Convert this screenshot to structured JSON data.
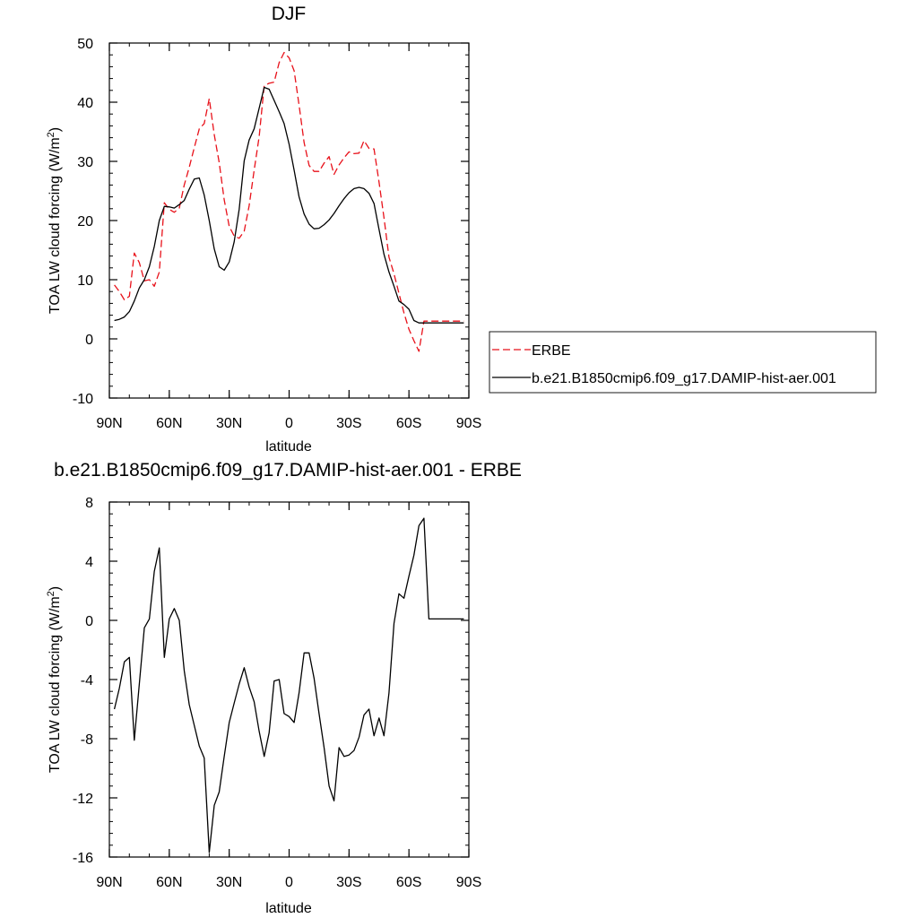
{
  "chart_data": [
    {
      "type": "line",
      "title": "DJF",
      "xlabel": "latitude",
      "ylabel_main": "TOA LW cloud forcing (W/m",
      "ylabel_sup": "2",
      "ylabel_close": ")",
      "xlim": [
        90,
        -90
      ],
      "ylim": [
        -10,
        50
      ],
      "x_ticks": [
        {
          "value": 90,
          "label": "90N"
        },
        {
          "value": 60,
          "label": "60N"
        },
        {
          "value": 30,
          "label": "30N"
        },
        {
          "value": 0,
          "label": "0"
        },
        {
          "value": -30,
          "label": "30S"
        },
        {
          "value": -60,
          "label": "60S"
        },
        {
          "value": -90,
          "label": "90S"
        }
      ],
      "y_ticks": [
        {
          "value": 50,
          "label": "50"
        },
        {
          "value": 40,
          "label": "40"
        },
        {
          "value": 30,
          "label": "30"
        },
        {
          "value": 20,
          "label": "20"
        },
        {
          "value": 10,
          "label": "10"
        },
        {
          "value": 0,
          "label": "0"
        },
        {
          "value": -10,
          "label": "-10"
        }
      ],
      "legend": [
        {
          "label": "ERBE",
          "color": "#e8111a",
          "dash": "dashed"
        },
        {
          "label": "b.e21.B1850cmip6.f09_g17.DAMIP-hist-aer.001",
          "color": "#000000",
          "dash": "solid"
        }
      ],
      "series": [
        {
          "name": "ERBE",
          "color": "#e8111a",
          "dash": "dashed",
          "x": [
            87.5,
            85,
            82.5,
            80,
            77.5,
            75,
            72.5,
            70,
            67.5,
            65,
            62.5,
            60,
            57.5,
            55,
            52.5,
            50,
            47.5,
            45,
            42.5,
            40,
            37.5,
            35,
            32.5,
            30,
            27.5,
            25,
            22.5,
            20,
            17.5,
            15,
            12.5,
            10,
            7.5,
            5,
            2.5,
            0,
            -2.5,
            -5,
            -7.5,
            -10,
            -12.5,
            -15,
            -17.5,
            -20,
            -22.5,
            -25,
            -27.5,
            -30,
            -32.5,
            -35,
            -37.5,
            -40,
            -42.5,
            -45,
            -47.5,
            -50,
            -52.5,
            -55,
            -57.5,
            -60,
            -62.5,
            -65,
            -67.5,
            -70,
            -72.5,
            -75,
            -77.5,
            -80,
            -82.5,
            -85,
            -87.5
          ],
          "y": [
            9.1,
            8.0,
            6.6,
            7.2,
            14.5,
            12.9,
            9.8,
            10.0,
            8.9,
            11.3,
            23.0,
            21.9,
            21.4,
            22.1,
            26.0,
            29.0,
            32.3,
            35.5,
            36.4,
            40.6,
            34.5,
            29.8,
            23.5,
            19.0,
            17.4,
            17.0,
            18.2,
            22.5,
            28.5,
            34.2,
            42.8,
            43.2,
            43.4,
            46.7,
            48.4,
            47.5,
            45.3,
            39.5,
            33.2,
            29.3,
            28.3,
            28.3,
            29.7,
            30.8,
            27.8,
            29.4,
            30.6,
            31.6,
            31.3,
            31.4,
            33.5,
            32.2,
            32.1,
            26.5,
            20.5,
            13.8,
            11.0,
            7.7,
            4.4,
            1.6,
            -0.3,
            -2.1,
            3.0,
            3.0,
            3.0,
            3.0,
            3.0,
            3.0,
            3.0,
            3.0,
            3.0
          ]
        },
        {
          "name": "b.e21.B1850cmip6.f09_g17.DAMIP-hist-aer.001",
          "color": "#000000",
          "dash": "solid",
          "x": [
            87.5,
            85,
            82.5,
            80,
            77.5,
            75,
            72.5,
            70,
            67.5,
            65,
            62.5,
            60,
            57.5,
            55,
            52.5,
            50,
            47.5,
            45,
            42.5,
            40,
            37.5,
            35,
            32.5,
            30,
            27.5,
            25,
            22.5,
            20,
            17.5,
            15,
            12.5,
            10,
            7.5,
            5,
            2.5,
            0,
            -2.5,
            -5,
            -7.5,
            -10,
            -12.5,
            -15,
            -17.5,
            -20,
            -22.5,
            -25,
            -27.5,
            -30,
            -32.5,
            -35,
            -37.5,
            -40,
            -42.5,
            -45,
            -47.5,
            -50,
            -52.5,
            -55,
            -57.5,
            -60,
            -62.5,
            -65,
            -67.5,
            -70,
            -72.5,
            -75,
            -77.5,
            -80,
            -82.5,
            -85,
            -87.5
          ],
          "y": [
            3.1,
            3.3,
            3.7,
            4.6,
            6.4,
            8.6,
            10.0,
            12.2,
            15.6,
            20.0,
            22.4,
            22.3,
            22.1,
            22.7,
            23.4,
            25.3,
            27.0,
            27.2,
            24.3,
            20.0,
            15.2,
            12.2,
            11.6,
            13.0,
            16.4,
            21.9,
            30.1,
            33.6,
            35.5,
            39.0,
            42.5,
            42.2,
            40.3,
            38.4,
            36.4,
            32.9,
            28.5,
            24.0,
            21.1,
            19.4,
            18.6,
            18.7,
            19.3,
            20.1,
            21.2,
            22.5,
            23.7,
            24.7,
            25.4,
            25.6,
            25.4,
            24.6,
            22.9,
            18.5,
            14.3,
            11.3,
            8.9,
            6.4,
            5.8,
            5.0,
            3.1,
            2.7,
            2.7,
            2.7,
            2.7,
            2.7,
            2.7,
            2.7,
            2.7,
            2.7,
            2.7
          ]
        }
      ]
    },
    {
      "type": "line",
      "title": "b.e21.B1850cmip6.f09_g17.DAMIP-hist-aer.001 - ERBE",
      "xlabel": "latitude",
      "ylabel_main": "TOA LW cloud forcing (W/m",
      "ylabel_sup": "2",
      "ylabel_close": ")",
      "xlim": [
        90,
        -90
      ],
      "ylim": [
        -16,
        8
      ],
      "x_ticks": [
        {
          "value": 90,
          "label": "90N"
        },
        {
          "value": 60,
          "label": "60N"
        },
        {
          "value": 30,
          "label": "30N"
        },
        {
          "value": 0,
          "label": "0"
        },
        {
          "value": -30,
          "label": "30S"
        },
        {
          "value": -60,
          "label": "60S"
        },
        {
          "value": -90,
          "label": "90S"
        }
      ],
      "y_ticks": [
        {
          "value": 8,
          "label": "8"
        },
        {
          "value": 4,
          "label": "4"
        },
        {
          "value": 0,
          "label": "0"
        },
        {
          "value": -4,
          "label": "-4"
        },
        {
          "value": -8,
          "label": "-8"
        },
        {
          "value": -12,
          "label": "-12"
        },
        {
          "value": -16,
          "label": "-16"
        }
      ],
      "series": [
        {
          "name": "b.e21.B1850cmip6.f09_g17.DAMIP-hist-aer.001 - ERBE",
          "color": "#000000",
          "dash": "solid",
          "x": [
            87.5,
            85,
            82.5,
            80,
            77.5,
            75,
            72.5,
            70,
            67.5,
            65,
            62.5,
            60,
            57.5,
            55,
            52.5,
            50,
            47.5,
            45,
            42.5,
            40,
            37.5,
            35,
            32.5,
            30,
            27.5,
            25,
            22.5,
            20,
            17.5,
            15,
            12.5,
            10,
            7.5,
            5,
            2.5,
            0,
            -2.5,
            -5,
            -7.5,
            -10,
            -12.5,
            -15,
            -17.5,
            -20,
            -22.5,
            -25,
            -27.5,
            -30,
            -32.5,
            -35,
            -37.5,
            -40,
            -42.5,
            -45,
            -47.5,
            -50,
            -52.5,
            -55,
            -57.5,
            -60,
            -62.5,
            -65,
            -67.5,
            -70,
            -72.5,
            -75,
            -77.5,
            -80,
            -82.5,
            -85,
            -87.5
          ],
          "y": [
            -6.0,
            -4.6,
            -2.8,
            -2.5,
            -8.1,
            -4.3,
            -0.5,
            0.1,
            3.3,
            4.9,
            -2.5,
            0.1,
            0.8,
            0.0,
            -3.4,
            -5.7,
            -7.1,
            -8.5,
            -9.3,
            -15.7,
            -12.5,
            -11.6,
            -9.2,
            -6.9,
            -5.6,
            -4.3,
            -3.2,
            -4.5,
            -5.5,
            -7.5,
            -9.2,
            -7.6,
            -4.1,
            -4.0,
            -6.3,
            -6.5,
            -6.9,
            -4.9,
            -2.2,
            -2.2,
            -3.9,
            -6.3,
            -8.6,
            -11.2,
            -12.2,
            -8.6,
            -9.2,
            -9.1,
            -8.8,
            -7.9,
            -6.4,
            -6.0,
            -7.8,
            -6.6,
            -7.8,
            -4.9,
            -0.2,
            1.8,
            1.5,
            3.0,
            4.4,
            6.4,
            6.9,
            0.1,
            0.1,
            0.1,
            0.1,
            0.1,
            0.1,
            0.1,
            0.1
          ]
        }
      ]
    }
  ]
}
